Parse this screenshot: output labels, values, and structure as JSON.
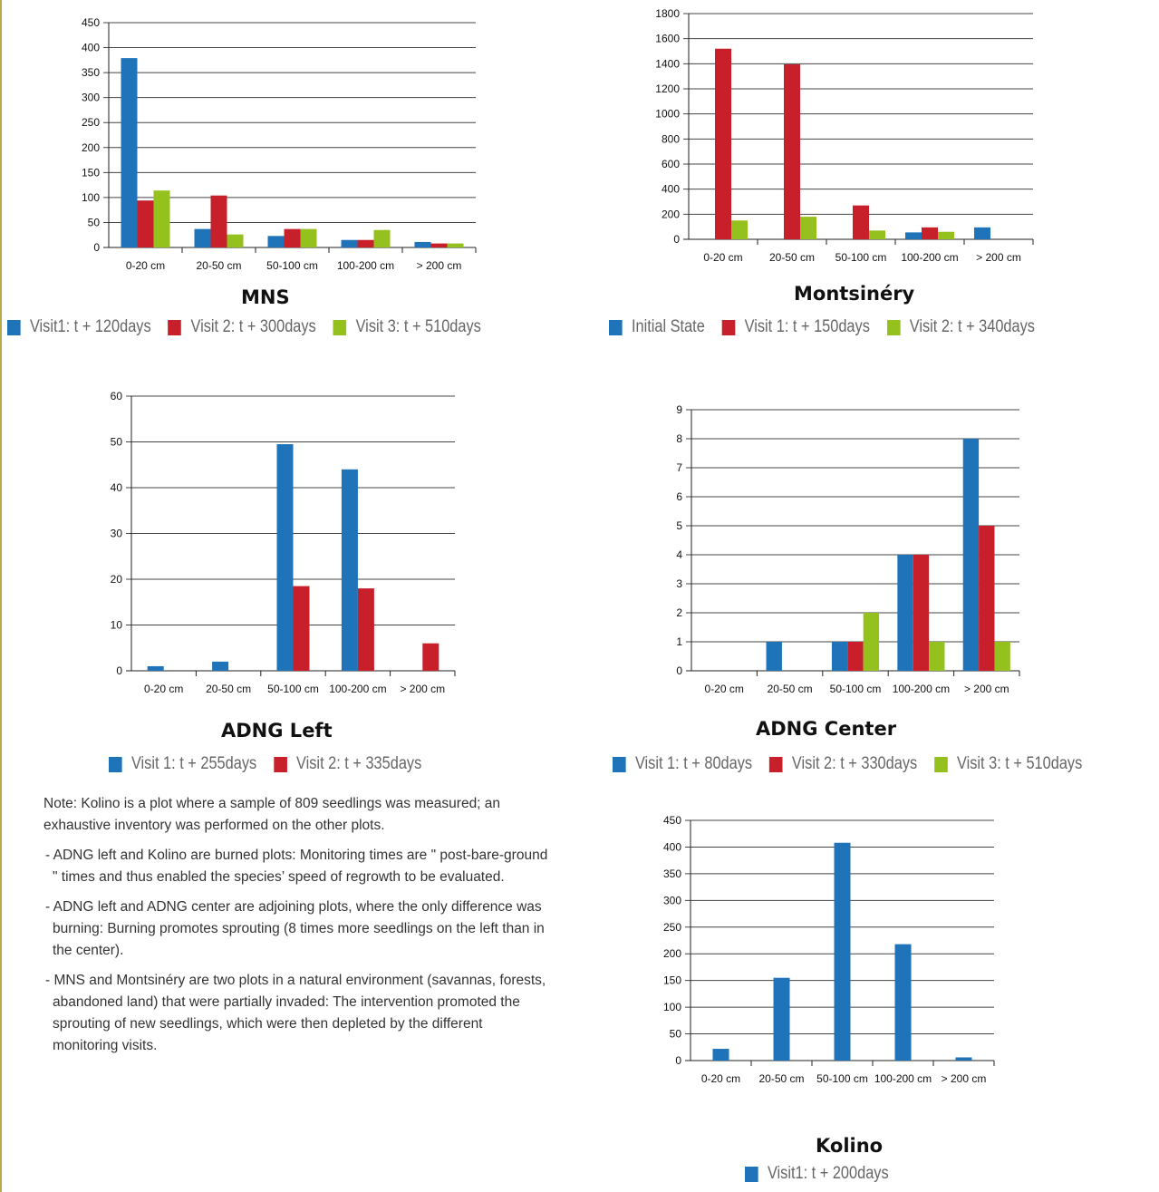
{
  "colors": {
    "blue": "#1f73b8",
    "red": "#c8202b",
    "green": "#95c11f"
  },
  "chart_data": [
    {
      "id": "mns",
      "type": "bar",
      "title": "MNS",
      "categories": [
        "0-20 cm",
        "20-50 cm",
        "50-100 cm",
        "100-200 cm",
        "> 200 cm"
      ],
      "ylim": [
        0,
        450
      ],
      "yticks": [
        0,
        50,
        100,
        150,
        200,
        250,
        300,
        350,
        400,
        450
      ],
      "grid": true,
      "legend_position": "bottom",
      "series": [
        {
          "name": "Visit1: t + 120days",
          "color": "#1f73b8",
          "values": [
            379,
            37,
            23,
            15,
            11
          ]
        },
        {
          "name": "Visit 2: t + 300days",
          "color": "#c8202b",
          "values": [
            94,
            104,
            37,
            15,
            8
          ]
        },
        {
          "name": "Visit 3: t + 510days",
          "color": "#95c11f",
          "values": [
            114,
            26,
            37,
            35,
            8
          ]
        }
      ]
    },
    {
      "id": "montsinery",
      "type": "bar",
      "title": "Montsinéry",
      "categories": [
        "0-20 cm",
        "20-50 cm",
        "50-100 cm",
        "100-200 cm",
        "> 200 cm"
      ],
      "ylim": [
        0,
        1800
      ],
      "yticks": [
        0,
        200,
        400,
        600,
        800,
        1000,
        1200,
        1400,
        1600,
        1800
      ],
      "grid": true,
      "legend_position": "bottom",
      "series": [
        {
          "name": "Initial State",
          "color": "#1f73b8",
          "values": [
            0,
            0,
            0,
            55,
            95
          ]
        },
        {
          "name": "Visit 1: t + 150days",
          "color": "#c8202b",
          "values": [
            1520,
            1395,
            270,
            95,
            0
          ]
        },
        {
          "name": "Visit 2: t + 340days",
          "color": "#95c11f",
          "values": [
            150,
            180,
            70,
            60,
            0
          ]
        }
      ]
    },
    {
      "id": "adng-left",
      "type": "bar",
      "title": "ADNG Left",
      "categories": [
        "0-20 cm",
        "20-50 cm",
        "50-100 cm",
        "100-200 cm",
        "> 200 cm"
      ],
      "ylim": [
        0,
        60
      ],
      "yticks": [
        0,
        10,
        20,
        30,
        40,
        50,
        60
      ],
      "grid": true,
      "legend_position": "bottom",
      "series": [
        {
          "name": "Visit 1: t + 255days",
          "color": "#1f73b8",
          "values": [
            1,
            2,
            49.5,
            44,
            0
          ]
        },
        {
          "name": "Visit 2: t + 335days",
          "color": "#c8202b",
          "values": [
            0,
            0,
            18.5,
            18,
            6
          ]
        }
      ]
    },
    {
      "id": "adng-center",
      "type": "bar",
      "title": "ADNG Center",
      "categories": [
        "0-20 cm",
        "20-50 cm",
        "50-100 cm",
        "100-200 cm",
        "> 200 cm"
      ],
      "ylim": [
        0,
        9
      ],
      "yticks": [
        0,
        1,
        2,
        3,
        4,
        5,
        6,
        7,
        8,
        9
      ],
      "grid": true,
      "legend_position": "bottom",
      "series": [
        {
          "name": "Visit 1: t + 80days",
          "color": "#1f73b8",
          "values": [
            0,
            1,
            1,
            4,
            8
          ]
        },
        {
          "name": "Visit 2: t + 330days",
          "color": "#c8202b",
          "values": [
            0,
            0,
            1,
            4,
            5
          ]
        },
        {
          "name": "Visit 3: t + 510days",
          "color": "#95c11f",
          "values": [
            0,
            0,
            2,
            1,
            1
          ]
        }
      ]
    },
    {
      "id": "kolino",
      "type": "bar",
      "title": "Kolino",
      "categories": [
        "0-20 cm",
        "20-50 cm",
        "50-100 cm",
        "100-200 cm",
        "> 200 cm"
      ],
      "ylim": [
        0,
        450
      ],
      "yticks": [
        0,
        50,
        100,
        150,
        200,
        250,
        300,
        350,
        400,
        450
      ],
      "grid": true,
      "legend_position": "bottom",
      "series": [
        {
          "name": "Visit1: t + 200days",
          "color": "#1f73b8",
          "values": [
            22,
            155,
            408,
            218,
            6
          ]
        }
      ]
    }
  ],
  "notes": {
    "intro": "Note: Kolino is a plot where a sample of 809 seedlings was measured; an exhaustive inventory was performed on the other plots.",
    "bullet1": "- ADNG left and Kolino are burned plots: Monitoring times are \" post-bare-ground \" times and thus enabled the species’ speed of regrowth to be evaluated.",
    "bullet2": "- ADNG left and ADNG center are adjoining plots, where the only difference was burning: Burning promotes sprouting (8 times more seedlings on the left than in the center).",
    "bullet3": "- MNS and Montsinéry are two plots in a natural environment (savannas, forests, abandoned land) that were partially invaded: The intervention promoted the sprouting of new seedlings, which were then depleted by the different monitoring visits."
  }
}
